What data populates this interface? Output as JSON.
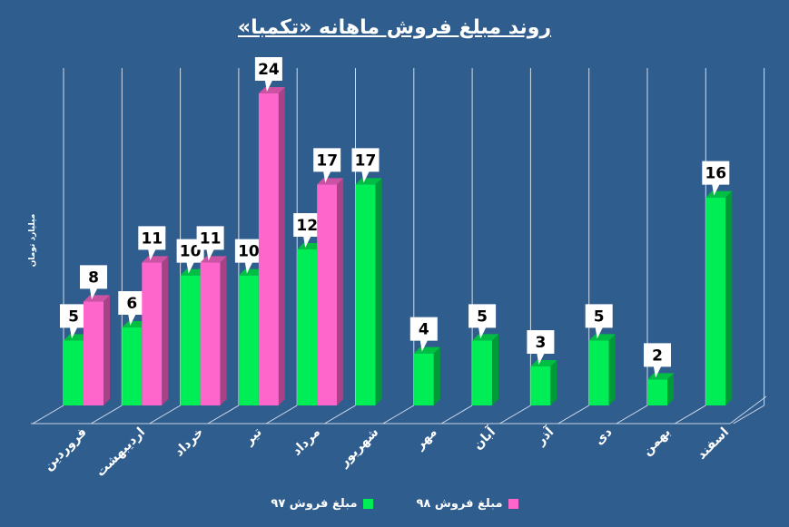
{
  "chart_data": {
    "type": "bar",
    "title": "روند مبلغ فروش ماهانه «تکمبا»",
    "ylabel": "میلیارد تومان",
    "xlabel": "",
    "categories": [
      "فروردین",
      "اردیبهشت",
      "خرداد",
      "تیر",
      "مرداد",
      "شهریور",
      "مهر",
      "آبان",
      "آذر",
      "دی",
      "بهمن",
      "اسفند"
    ],
    "series": [
      {
        "name": "مبلغ فروش ۹۷",
        "color": "#00ee55",
        "values": [
          5,
          6,
          10,
          10,
          12,
          17,
          4,
          5,
          3,
          5,
          2,
          16
        ]
      },
      {
        "name": "مبلغ فروش ۹۸",
        "color": "#ff66cc",
        "values": [
          8,
          11,
          11,
          24,
          17,
          null,
          null,
          null,
          null,
          null,
          null,
          null
        ]
      }
    ],
    "ylim": [
      0,
      27
    ],
    "grid": true,
    "legend_position": "bottom"
  }
}
